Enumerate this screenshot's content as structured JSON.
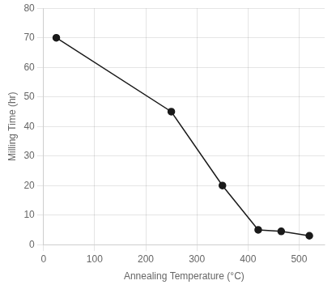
{
  "chart_data": {
    "type": "line",
    "x": [
      25,
      250,
      350,
      420,
      465,
      520
    ],
    "values": [
      70,
      45,
      20,
      5,
      4.5,
      3
    ],
    "xlabel": "Annealing Temperature (°C)",
    "ylabel": "Milling Time (hr)",
    "xlim": [
      0,
      550
    ],
    "ylim": [
      0,
      80
    ],
    "xticks": [
      0,
      100,
      200,
      300,
      400,
      500
    ],
    "yticks": [
      0,
      10,
      20,
      30,
      40,
      50,
      60,
      70,
      80
    ],
    "grid": true,
    "color": "#1a1a1a",
    "marker": "circle"
  }
}
